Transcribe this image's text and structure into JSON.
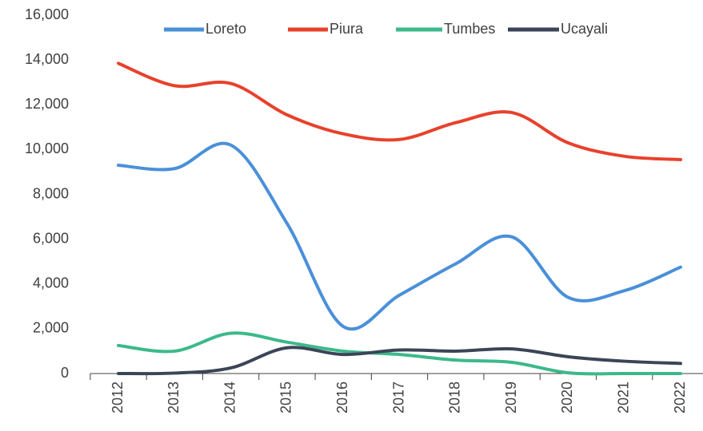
{
  "chart_data": {
    "type": "line",
    "categories": [
      "2012",
      "2013",
      "2014",
      "2015",
      "2016",
      "2017",
      "2018",
      "2019",
      "2020",
      "2021",
      "2022"
    ],
    "series": [
      {
        "name": "Loreto",
        "color": "#4a90d9",
        "values": [
          9300,
          9150,
          10200,
          6700,
          2100,
          3500,
          4900,
          6100,
          3400,
          3700,
          4750
        ]
      },
      {
        "name": "Piura",
        "color": "#e8412c",
        "values": [
          13850,
          12850,
          12950,
          11550,
          10700,
          10450,
          11200,
          11650,
          10300,
          9700,
          9550
        ]
      },
      {
        "name": "Tumbes",
        "color": "#3cb98a",
        "values": [
          1250,
          1000,
          1800,
          1400,
          1000,
          850,
          600,
          500,
          30,
          0,
          0
        ]
      },
      {
        "name": "Ucayali",
        "color": "#3b4557",
        "values": [
          0,
          20,
          250,
          1150,
          850,
          1050,
          1000,
          1100,
          750,
          550,
          450
        ]
      }
    ],
    "ylim": [
      0,
      16000
    ],
    "yticks": [
      {
        "value": 0,
        "label": "0"
      },
      {
        "value": 2000,
        "label": "2,000"
      },
      {
        "value": 4000,
        "label": "4,000"
      },
      {
        "value": 6000,
        "label": "6,000"
      },
      {
        "value": 8000,
        "label": "8,000"
      },
      {
        "value": 10000,
        "label": "10,000"
      },
      {
        "value": 12000,
        "label": "12,000"
      },
      {
        "value": 14000,
        "label": "14,000"
      },
      {
        "value": 16000,
        "label": "16,000"
      }
    ],
    "grid": false,
    "legend": "top"
  }
}
